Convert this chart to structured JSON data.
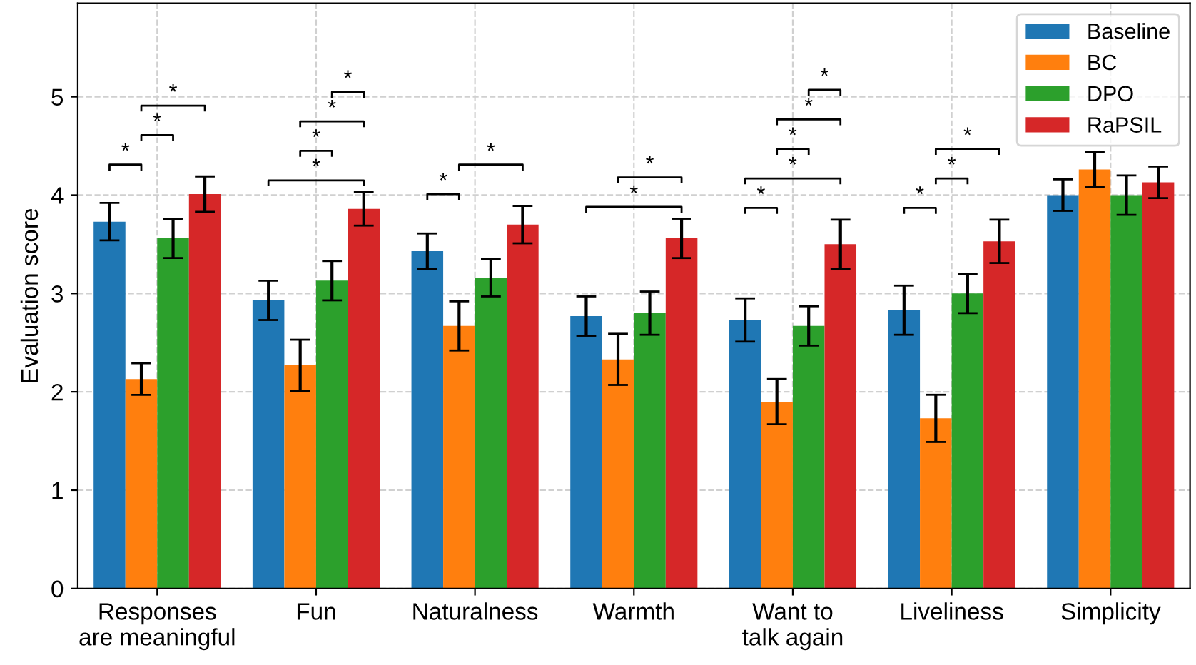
{
  "chart_data": {
    "type": "bar",
    "ylabel": "Evaluation score",
    "categories": [
      "Responses\nare meaningful",
      "Fun",
      "Naturalness",
      "Warmth",
      "Want to\ntalk again",
      "Liveliness",
      "Simplicity"
    ],
    "series": [
      {
        "name": "Baseline",
        "color": "#1f77b4",
        "values": [
          3.73,
          2.93,
          3.43,
          2.77,
          2.73,
          2.83,
          4.0
        ],
        "errors": [
          0.19,
          0.2,
          0.18,
          0.2,
          0.22,
          0.25,
          0.16
        ]
      },
      {
        "name": "BC",
        "color": "#ff7f0e",
        "values": [
          2.13,
          2.27,
          2.67,
          2.33,
          1.9,
          1.73,
          4.26
        ],
        "errors": [
          0.16,
          0.26,
          0.25,
          0.26,
          0.23,
          0.24,
          0.18
        ]
      },
      {
        "name": "DPO",
        "color": "#2ca02c",
        "values": [
          3.56,
          3.13,
          3.16,
          2.8,
          2.67,
          3.0,
          4.0
        ],
        "errors": [
          0.2,
          0.2,
          0.19,
          0.22,
          0.2,
          0.2,
          0.2
        ]
      },
      {
        "name": "RaPSIL",
        "color": "#d62728",
        "values": [
          4.01,
          3.86,
          3.7,
          3.56,
          3.5,
          3.53,
          4.13
        ],
        "errors": [
          0.18,
          0.17,
          0.19,
          0.2,
          0.25,
          0.22,
          0.16
        ]
      }
    ],
    "ylim": [
      0,
      5.95
    ],
    "yticks": [
      0,
      1,
      2,
      3,
      4,
      5
    ],
    "grid": true,
    "legend": "top right",
    "annotations": [
      "*",
      "*",
      "*",
      "*",
      "*",
      "*",
      "*",
      "*",
      "*",
      "*",
      "*",
      "*",
      "*",
      "*",
      "*",
      "*",
      "*",
      "*",
      "*"
    ]
  }
}
